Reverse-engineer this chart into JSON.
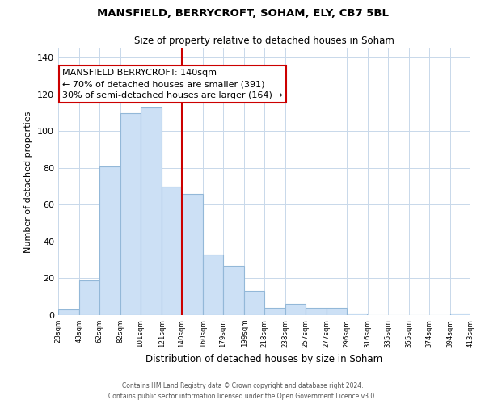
{
  "title": "MANSFIELD, BERRYCROFT, SOHAM, ELY, CB7 5BL",
  "subtitle": "Size of property relative to detached houses in Soham",
  "xlabel": "Distribution of detached houses by size in Soham",
  "ylabel": "Number of detached properties",
  "bar_color": "#cce0f5",
  "bar_edge_color": "#93b8d8",
  "bar_left_edges": [
    23,
    43,
    62,
    82,
    101,
    121,
    140,
    160,
    179,
    199,
    218,
    238,
    257,
    277,
    296,
    316,
    335,
    355,
    374,
    394
  ],
  "bar_widths": [
    20,
    19,
    20,
    19,
    20,
    19,
    20,
    19,
    20,
    19,
    20,
    19,
    20,
    19,
    19,
    19,
    20,
    19,
    20,
    19
  ],
  "bar_heights": [
    3,
    19,
    81,
    110,
    113,
    70,
    66,
    33,
    27,
    13,
    4,
    6,
    4,
    4,
    1,
    0,
    0,
    0,
    0,
    1
  ],
  "tick_labels": [
    "23sqm",
    "43sqm",
    "62sqm",
    "82sqm",
    "101sqm",
    "121sqm",
    "140sqm",
    "160sqm",
    "179sqm",
    "199sqm",
    "218sqm",
    "238sqm",
    "257sqm",
    "277sqm",
    "296sqm",
    "316sqm",
    "335sqm",
    "355sqm",
    "374sqm",
    "394sqm",
    "413sqm"
  ],
  "tick_positions": [
    23,
    43,
    62,
    82,
    101,
    121,
    140,
    160,
    179,
    199,
    218,
    238,
    257,
    277,
    296,
    316,
    335,
    355,
    374,
    394,
    413
  ],
  "xlim_min": 23,
  "xlim_max": 413,
  "ylim": [
    0,
    145
  ],
  "yticks": [
    0,
    20,
    40,
    60,
    80,
    100,
    120,
    140
  ],
  "property_line_x": 140,
  "property_line_color": "#cc0000",
  "annotation_line1": "MANSFIELD BERRYCROFT: 140sqm",
  "annotation_line2": "← 70% of detached houses are smaller (391)",
  "annotation_line3": "30% of semi-detached houses are larger (164) →",
  "footer_line1": "Contains HM Land Registry data © Crown copyright and database right 2024.",
  "footer_line2": "Contains public sector information licensed under the Open Government Licence v3.0.",
  "background_color": "#ffffff",
  "grid_color": "#c8d8ea"
}
